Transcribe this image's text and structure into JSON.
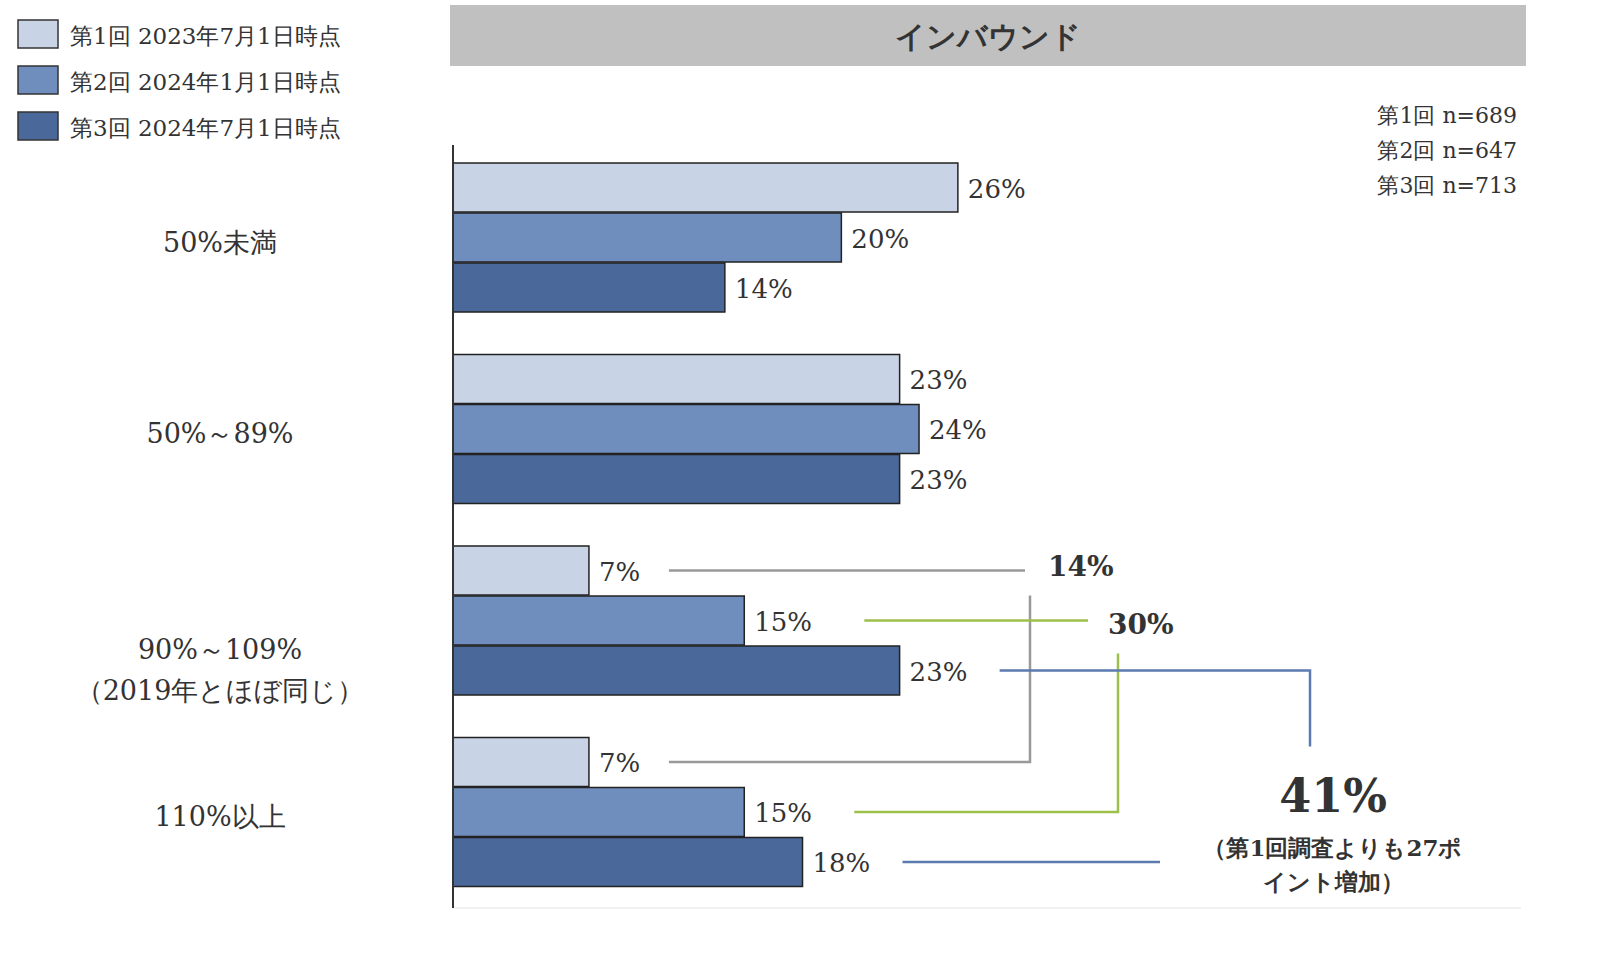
{
  "chart_data": {
    "type": "bar",
    "title": "インバウンド",
    "orientation": "horizontal",
    "categories": [
      "50%未満",
      "50%～89%",
      "90%～109%\n（2019年とほぼ同じ）",
      "110%以上"
    ],
    "series": [
      {
        "name": "第1回 2023年7月1日時点",
        "color": "#c9d3e6",
        "values": [
          26,
          23,
          7,
          7
        ],
        "value_labels": [
          "26%",
          "23%",
          "7%",
          "7%"
        ]
      },
      {
        "name": "第2回 2024年1月1日時点",
        "color": "#6f8dbd",
        "values": [
          20,
          24,
          15,
          15
        ],
        "value_labels": [
          "20%",
          "24%",
          "15%",
          "15%"
        ]
      },
      {
        "name": "第3回 2024年7月1日時点",
        "color": "#4a6899",
        "values": [
          14,
          23,
          23,
          18
        ],
        "value_labels": [
          "14%",
          "23%",
          "23%",
          "18%"
        ]
      }
    ],
    "xlim": [
      0,
      55
    ],
    "tick_labels": false,
    "grid": false,
    "data_labels": true,
    "legend": "top-left",
    "notes": [
      "第1回 n=689",
      "第2回 n=647",
      "第3回 n=713"
    ],
    "annotations": [
      {
        "text": "14%",
        "color": "#999999"
      },
      {
        "text": "30%",
        "color": "#9dc04a"
      },
      {
        "text": "41%",
        "color": "#5b7bb0",
        "note": "（第1回調査よりも27ポイント増加）"
      }
    ]
  }
}
